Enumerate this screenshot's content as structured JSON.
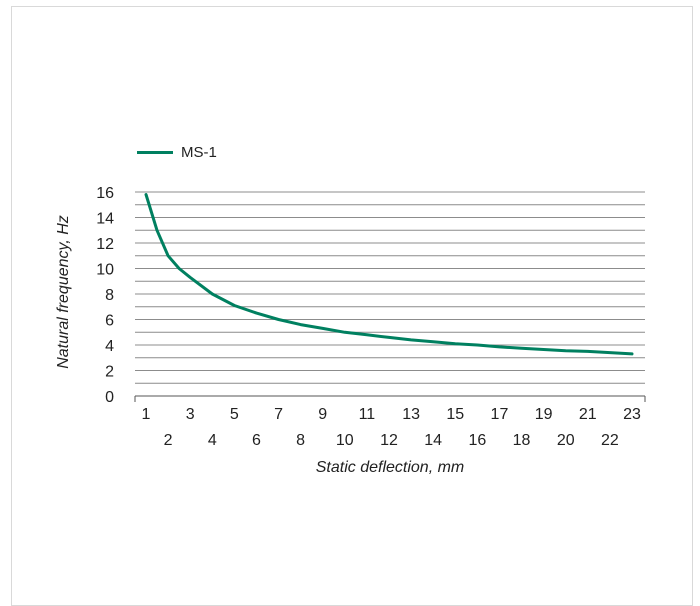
{
  "colors": {
    "series": "#008060",
    "grid": "#8c8c8c",
    "axis": "#555555",
    "text": "#222222",
    "frame": "#d9d9d9"
  },
  "chart_data": {
    "type": "line",
    "xlabel": "Static deflection, mm",
    "ylabel": "Natural frequency, Hz",
    "xlim": [
      1,
      23
    ],
    "ylim": [
      0,
      16
    ],
    "x_ticks": [
      1,
      2,
      3,
      4,
      5,
      6,
      7,
      8,
      9,
      10,
      11,
      12,
      13,
      14,
      15,
      16,
      17,
      18,
      19,
      20,
      21,
      22,
      23
    ],
    "y_ticks": [
      0,
      2,
      4,
      6,
      8,
      10,
      12,
      14,
      16
    ],
    "y_gridlines": [
      0,
      1,
      2,
      3,
      4,
      5,
      6,
      7,
      8,
      9,
      10,
      11,
      12,
      13,
      14,
      15,
      16
    ],
    "grid": true,
    "legend": "top-left",
    "series": [
      {
        "name": "MS-1",
        "color": "#008060",
        "x": [
          1,
          1.5,
          2,
          2.5,
          3,
          4,
          5,
          6,
          7,
          8,
          9,
          10,
          11,
          12,
          13,
          14,
          15,
          16,
          17,
          18,
          19,
          20,
          21,
          22,
          23
        ],
        "y": [
          15.8,
          13.0,
          11.0,
          10.0,
          9.3,
          8.0,
          7.1,
          6.5,
          6.0,
          5.6,
          5.3,
          5.0,
          4.8,
          4.6,
          4.4,
          4.25,
          4.1,
          4.0,
          3.85,
          3.75,
          3.65,
          3.55,
          3.5,
          3.4,
          3.3
        ]
      }
    ]
  }
}
